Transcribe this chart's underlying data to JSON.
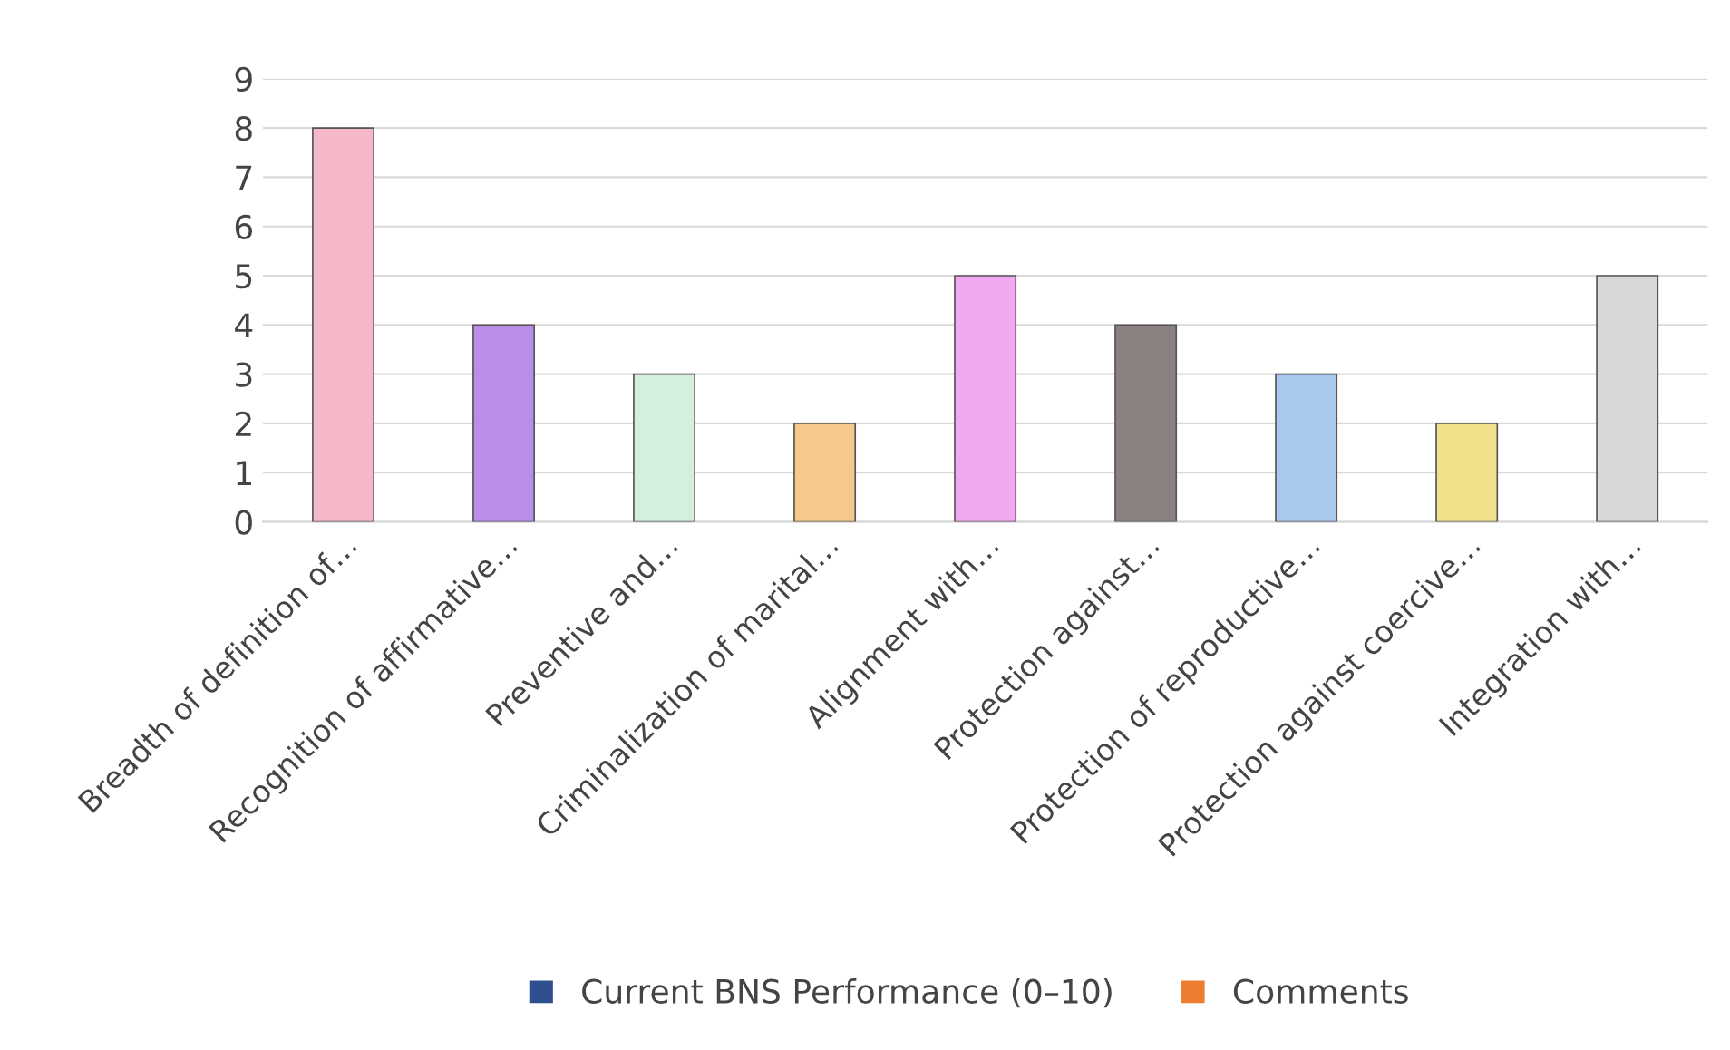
{
  "chart_data": {
    "type": "bar",
    "categories": [
      "Breadth of definition of…",
      "Recognition of affirmative…",
      "Preventive and…",
      "Criminalization of marital…",
      "Alignment with…",
      "Protection against…",
      "Protection of reproductive…",
      "Protection against coercive…",
      "Integration with…"
    ],
    "series": [
      {
        "name": "Current BNS Performance (0–10)",
        "color": "#2f4f8f",
        "colors": [
          "#f4b8c8",
          "#b88ee8",
          "#d4f0dc",
          "#f5c98a",
          "#f0a8f0",
          "#8a8080",
          "#a8c8ec",
          "#f0e08a",
          "#d8d8d8"
        ],
        "values": [
          8,
          4,
          3,
          2,
          5,
          4,
          3,
          2,
          5
        ]
      },
      {
        "name": "Comments",
        "color": "#ed7d31",
        "values": [
          null,
          null,
          null,
          null,
          null,
          null,
          null,
          null,
          null
        ]
      }
    ],
    "ylim": [
      0,
      9
    ],
    "yticks": [
      0,
      1,
      2,
      3,
      4,
      5,
      6,
      7,
      8,
      9
    ],
    "grid": "y",
    "legend": "bottom"
  }
}
